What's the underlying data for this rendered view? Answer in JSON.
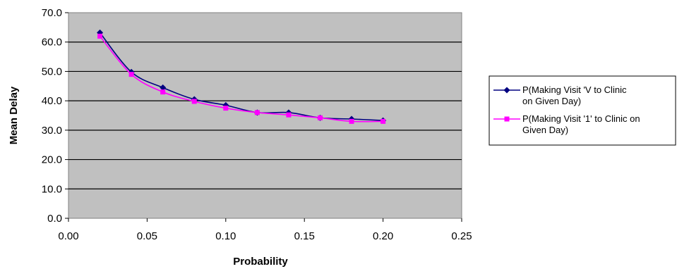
{
  "chart_data": {
    "type": "line",
    "title": "",
    "xlabel": "Probability",
    "ylabel": "Mean Delay",
    "xlim": [
      0,
      0.25
    ],
    "ylim": [
      0,
      70
    ],
    "x_ticks": [
      "0.00",
      "0.05",
      "0.10",
      "0.15",
      "0.20",
      "0.25"
    ],
    "y_ticks": [
      "0.0",
      "10.0",
      "20.0",
      "30.0",
      "40.0",
      "50.0",
      "60.0",
      "70.0"
    ],
    "grid": "horizontal",
    "plot_background": "#c0c0c0",
    "legend_position": "right",
    "series": [
      {
        "name": "P(Making Visit 'V to Clinic on Given Day)",
        "legend_lines": [
          "P(Making Visit 'V to Clinic",
          "on Given Day)"
        ],
        "color": "#000080",
        "marker": "diamond",
        "x": [
          0.02,
          0.04,
          0.06,
          0.08,
          0.1,
          0.12,
          0.14,
          0.16,
          0.18,
          0.2
        ],
        "y": [
          63.2,
          49.8,
          44.5,
          40.5,
          38.5,
          36.0,
          36.0,
          34.2,
          33.8,
          33.3
        ]
      },
      {
        "name": "P(Making Visit '1' to Clinic on Given Day)",
        "legend_lines": [
          "P(Making Visit '1' to Clinic on",
          "Given Day)"
        ],
        "color": "#ff00ff",
        "marker": "square",
        "x": [
          0.02,
          0.04,
          0.06,
          0.08,
          0.1,
          0.12,
          0.14,
          0.16,
          0.18,
          0.2
        ],
        "y": [
          62.0,
          49.0,
          43.0,
          39.8,
          37.5,
          36.0,
          35.2,
          34.2,
          33.0,
          33.0
        ]
      }
    ]
  }
}
